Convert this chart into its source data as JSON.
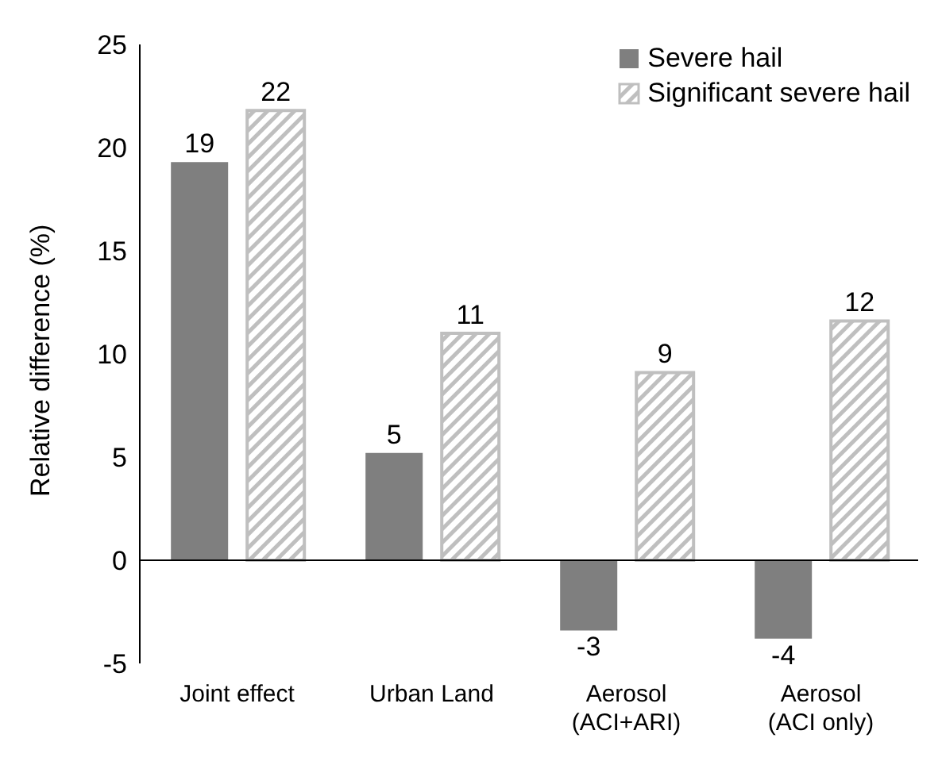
{
  "chart_data": {
    "type": "bar",
    "ylabel": "Relative difference (%)",
    "categories": [
      "Joint effect",
      "Urban Land",
      "Aerosol\n(ACI+ARI)",
      "Aerosol\n(ACI only)"
    ],
    "series": [
      {
        "name": "Severe hail",
        "color": "#7f7f7f",
        "values": [
          19.3,
          5.2,
          -3.4,
          -3.8
        ],
        "value_labels": [
          "19",
          "5",
          "-3",
          "-4"
        ]
      },
      {
        "name": "Significant severe hail",
        "color": "#bfbfbf",
        "values": [
          21.8,
          11.0,
          9.1,
          11.6
        ],
        "value_labels": [
          "22",
          "11",
          "9",
          "12"
        ]
      }
    ],
    "ylim": [
      -5,
      25
    ],
    "yticks": [
      -5,
      0,
      5,
      10,
      15,
      20,
      25
    ],
    "legend": "top right"
  }
}
